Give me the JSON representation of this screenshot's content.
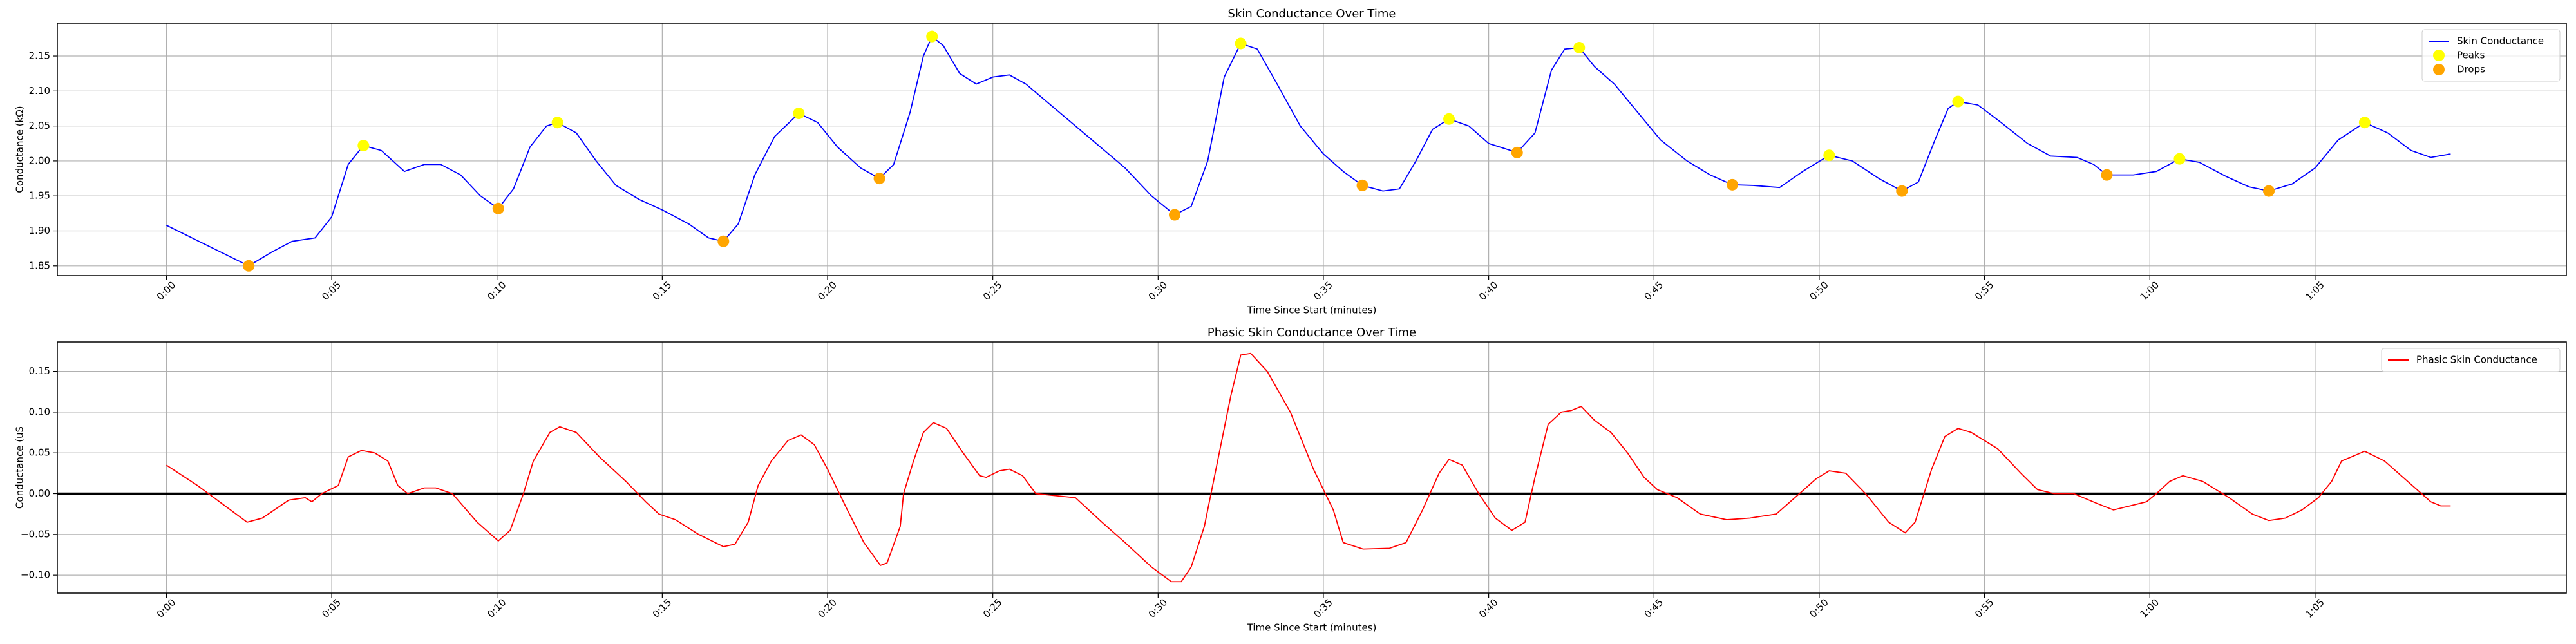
{
  "chart_data": [
    {
      "type": "line",
      "title": "Skin Conductance Over Time",
      "xlabel": "Time Since Start (minutes)",
      "ylabel": "Conductance (kΩ)",
      "xlim": [
        -3.3,
        72.6
      ],
      "ylim": [
        1.836,
        2.197
      ],
      "grid": true,
      "legend": "upper right",
      "xticks": [
        {
          "value": 0,
          "label": "0:00"
        },
        {
          "value": 5,
          "label": "0:05"
        },
        {
          "value": 10,
          "label": "0:10"
        },
        {
          "value": 15,
          "label": "0:15"
        },
        {
          "value": 20,
          "label": "0:20"
        },
        {
          "value": 25,
          "label": "0:25"
        },
        {
          "value": 30,
          "label": "0:30"
        },
        {
          "value": 35,
          "label": "0:35"
        },
        {
          "value": 40,
          "label": "0:40"
        },
        {
          "value": 45,
          "label": "0:45"
        },
        {
          "value": 50,
          "label": "0:50"
        },
        {
          "value": 55,
          "label": "0:55"
        },
        {
          "value": 60,
          "label": "1:00"
        },
        {
          "value": 65,
          "label": "1:05"
        }
      ],
      "yticks": [
        1.85,
        {
          "value": 1.9,
          "label": "1.90"
        },
        1.95,
        {
          "value": 2.0,
          "label": "2.00"
        },
        2.05,
        {
          "value": 2.1,
          "label": "2.10"
        },
        2.15
      ],
      "series": [
        {
          "name": "Skin Conductance",
          "type": "line",
          "color": "#0000ff",
          "x": [
            0,
            1.2,
            2.49,
            3.2,
            3.8,
            4.5,
            5.0,
            5.5,
            5.96,
            6.5,
            7.2,
            7.8,
            8.3,
            8.9,
            9.5,
            10.04,
            10.5,
            11.0,
            11.5,
            11.83,
            12.4,
            13.0,
            13.6,
            14.3,
            15.0,
            15.8,
            16.4,
            16.85,
            17.3,
            17.8,
            18.4,
            19.13,
            19.7,
            20.3,
            21.0,
            21.57,
            22.0,
            22.5,
            22.9,
            23.16,
            23.5,
            24.0,
            24.5,
            25.0,
            25.5,
            26.0,
            27.0,
            28.0,
            29.0,
            29.8,
            30.5,
            31.0,
            31.5,
            32.0,
            32.5,
            33.0,
            33.6,
            34.3,
            35.0,
            35.6,
            36.18,
            36.8,
            37.3,
            37.8,
            38.3,
            38.8,
            39.4,
            40.0,
            40.86,
            41.4,
            41.9,
            42.3,
            42.74,
            43.2,
            43.8,
            44.5,
            45.2,
            46.0,
            46.7,
            47.37,
            48.0,
            48.8,
            49.5,
            50.3,
            51.0,
            51.8,
            52.5,
            53.0,
            53.5,
            53.9,
            54.2,
            54.8,
            55.5,
            56.3,
            57.0,
            57.8,
            58.3,
            58.7,
            59.5,
            60.2,
            60.9,
            61.5,
            62.3,
            63.0,
            63.6,
            64.3,
            65.0,
            65.7,
            66.5,
            67.2,
            67.9,
            68.5,
            69.1
          ],
          "values": [
            1.908,
            1.88,
            1.85,
            1.87,
            1.885,
            1.89,
            1.92,
            1.995,
            2.022,
            2.015,
            1.985,
            1.995,
            1.995,
            1.98,
            1.95,
            1.932,
            1.96,
            2.02,
            2.05,
            2.055,
            2.04,
            2.0,
            1.965,
            1.945,
            1.93,
            1.91,
            1.89,
            1.885,
            1.91,
            1.98,
            2.035,
            2.068,
            2.055,
            2.02,
            1.99,
            1.975,
            1.995,
            2.07,
            2.15,
            2.178,
            2.165,
            2.125,
            2.11,
            2.12,
            2.123,
            2.11,
            2.07,
            2.03,
            1.99,
            1.95,
            1.923,
            1.935,
            2.0,
            2.12,
            2.168,
            2.16,
            2.11,
            2.05,
            2.01,
            1.985,
            1.965,
            1.957,
            1.96,
            2.0,
            2.045,
            2.06,
            2.05,
            2.025,
            2.012,
            2.04,
            2.13,
            2.16,
            2.162,
            2.135,
            2.11,
            2.07,
            2.03,
            2.0,
            1.98,
            1.966,
            1.965,
            1.962,
            1.985,
            2.008,
            2.0,
            1.975,
            1.957,
            1.97,
            2.03,
            2.075,
            2.085,
            2.08,
            2.055,
            2.025,
            2.007,
            2.005,
            1.995,
            1.98,
            1.98,
            1.985,
            2.003,
            1.998,
            1.978,
            1.963,
            1.957,
            1.967,
            1.99,
            2.03,
            2.055,
            2.04,
            2.015,
            2.005,
            2.01
          ]
        },
        {
          "name": "Peaks",
          "type": "scatter",
          "color": "#ffff00",
          "x": [
            5.96,
            11.83,
            19.13,
            23.16,
            32.5,
            38.8,
            42.74,
            50.3,
            54.2,
            60.9,
            66.5
          ],
          "values": [
            2.022,
            2.055,
            2.068,
            2.178,
            2.168,
            2.06,
            2.162,
            2.008,
            2.085,
            2.003,
            2.055
          ]
        },
        {
          "name": "Drops",
          "type": "scatter",
          "color": "#ffa500",
          "x": [
            2.49,
            10.04,
            16.85,
            21.57,
            30.5,
            36.18,
            40.86,
            47.37,
            52.5,
            58.7,
            63.6
          ],
          "values": [
            1.85,
            1.932,
            1.885,
            1.975,
            1.923,
            1.965,
            2.012,
            1.966,
            1.957,
            1.98,
            1.957
          ]
        }
      ]
    },
    {
      "type": "line",
      "title": "Phasic Skin Conductance Over Time",
      "xlabel": "Time Since Start (minutes)",
      "ylabel": "Conductance (uS",
      "xlim": [
        -3.3,
        72.6
      ],
      "ylim": [
        -0.122,
        0.186
      ],
      "grid": true,
      "legend": "upper right",
      "hline": 0,
      "xticks": [
        {
          "value": 0,
          "label": "0:00"
        },
        {
          "value": 5,
          "label": "0:05"
        },
        {
          "value": 10,
          "label": "0:10"
        },
        {
          "value": 15,
          "label": "0:15"
        },
        {
          "value": 20,
          "label": "0:20"
        },
        {
          "value": 25,
          "label": "0:25"
        },
        {
          "value": 30,
          "label": "0:30"
        },
        {
          "value": 35,
          "label": "0:35"
        },
        {
          "value": 40,
          "label": "0:40"
        },
        {
          "value": 45,
          "label": "0:45"
        },
        {
          "value": 50,
          "label": "0:50"
        },
        {
          "value": 55,
          "label": "0:55"
        },
        {
          "value": 60,
          "label": "1:00"
        },
        {
          "value": 65,
          "label": "1:05"
        }
      ],
      "yticks": [
        {
          "value": -0.1,
          "label": "−0.10"
        },
        {
          "value": -0.05,
          "label": "−0.05"
        },
        {
          "value": 0,
          "label": "0.00"
        },
        0.05,
        {
          "value": 0.1,
          "label": "0.10"
        },
        0.15
      ],
      "series": [
        {
          "name": "Phasic Skin Conductance",
          "type": "line",
          "color": "#ff0000",
          "x": [
            0,
            0.94,
            2.44,
            2.9,
            3.7,
            4.2,
            4.4,
            4.7,
            5.2,
            5.5,
            5.9,
            6.3,
            6.7,
            7.0,
            7.3,
            7.8,
            8.15,
            8.65,
            9.4,
            10.04,
            10.4,
            10.8,
            11.1,
            11.6,
            11.9,
            12.4,
            13.1,
            13.9,
            14.5,
            14.9,
            15.4,
            16.1,
            16.85,
            17.2,
            17.6,
            17.9,
            18.3,
            18.8,
            19.2,
            19.6,
            20.0,
            20.6,
            21.1,
            21.6,
            21.8,
            22.2,
            22.3,
            22.6,
            22.9,
            23.2,
            23.6,
            24.1,
            24.6,
            24.8,
            25.2,
            25.5,
            25.9,
            26.3,
            27.5,
            28.3,
            29.0,
            29.8,
            30.4,
            30.7,
            31.0,
            31.4,
            31.8,
            32.2,
            32.5,
            32.8,
            33.3,
            34.0,
            34.7,
            35.3,
            35.6,
            36.2,
            37.0,
            37.5,
            38.0,
            38.5,
            38.8,
            39.2,
            39.7,
            40.2,
            40.7,
            41.1,
            41.4,
            41.8,
            42.2,
            42.5,
            42.8,
            43.2,
            43.7,
            44.2,
            44.7,
            45.1,
            45.7,
            46.4,
            47.2,
            47.9,
            48.7,
            49.4,
            49.9,
            50.3,
            50.8,
            51.4,
            52.1,
            52.6,
            52.9,
            53.4,
            53.8,
            54.2,
            54.6,
            55.4,
            56.1,
            56.6,
            57.1,
            57.7,
            58.4,
            58.9,
            59.4,
            59.9,
            60.2,
            60.6,
            61.0,
            61.6,
            62.4,
            63.1,
            63.6,
            64.1,
            64.6,
            65.1,
            65.5,
            65.8,
            66.5,
            67.1,
            67.8,
            68.5,
            68.8,
            69.1
          ],
          "values": [
            0.035,
            0.01,
            -0.035,
            -0.03,
            -0.008,
            -0.005,
            -0.01,
            0.0,
            0.01,
            0.045,
            0.053,
            0.05,
            0.04,
            0.01,
            0.0,
            0.007,
            0.007,
            0.0,
            -0.035,
            -0.058,
            -0.045,
            0.0,
            0.04,
            0.075,
            0.082,
            0.075,
            0.045,
            0.015,
            -0.01,
            -0.025,
            -0.032,
            -0.05,
            -0.065,
            -0.062,
            -0.035,
            0.01,
            0.04,
            0.065,
            0.072,
            0.06,
            0.03,
            -0.02,
            -0.06,
            -0.088,
            -0.085,
            -0.04,
            0.0,
            0.04,
            0.075,
            0.087,
            0.08,
            0.05,
            0.022,
            0.02,
            0.028,
            0.03,
            0.022,
            0.0,
            -0.005,
            -0.035,
            -0.06,
            -0.09,
            -0.108,
            -0.108,
            -0.09,
            -0.04,
            0.04,
            0.12,
            0.17,
            0.172,
            0.15,
            0.1,
            0.03,
            -0.02,
            -0.06,
            -0.068,
            -0.067,
            -0.06,
            -0.02,
            0.025,
            0.042,
            0.035,
            0.0,
            -0.03,
            -0.045,
            -0.035,
            0.02,
            0.085,
            0.1,
            0.102,
            0.107,
            0.09,
            0.075,
            0.05,
            0.02,
            0.005,
            -0.005,
            -0.025,
            -0.032,
            -0.03,
            -0.025,
            0.0,
            0.018,
            0.028,
            0.025,
            0.0,
            -0.035,
            -0.048,
            -0.035,
            0.03,
            0.07,
            0.08,
            0.075,
            0.055,
            0.025,
            0.005,
            0.0,
            0.0,
            -0.012,
            -0.02,
            -0.015,
            -0.01,
            0.0,
            0.015,
            0.022,
            0.015,
            -0.005,
            -0.025,
            -0.033,
            -0.03,
            -0.02,
            -0.005,
            0.015,
            0.04,
            0.052,
            0.04,
            0.015,
            -0.01,
            -0.015,
            -0.015
          ]
        }
      ]
    }
  ]
}
